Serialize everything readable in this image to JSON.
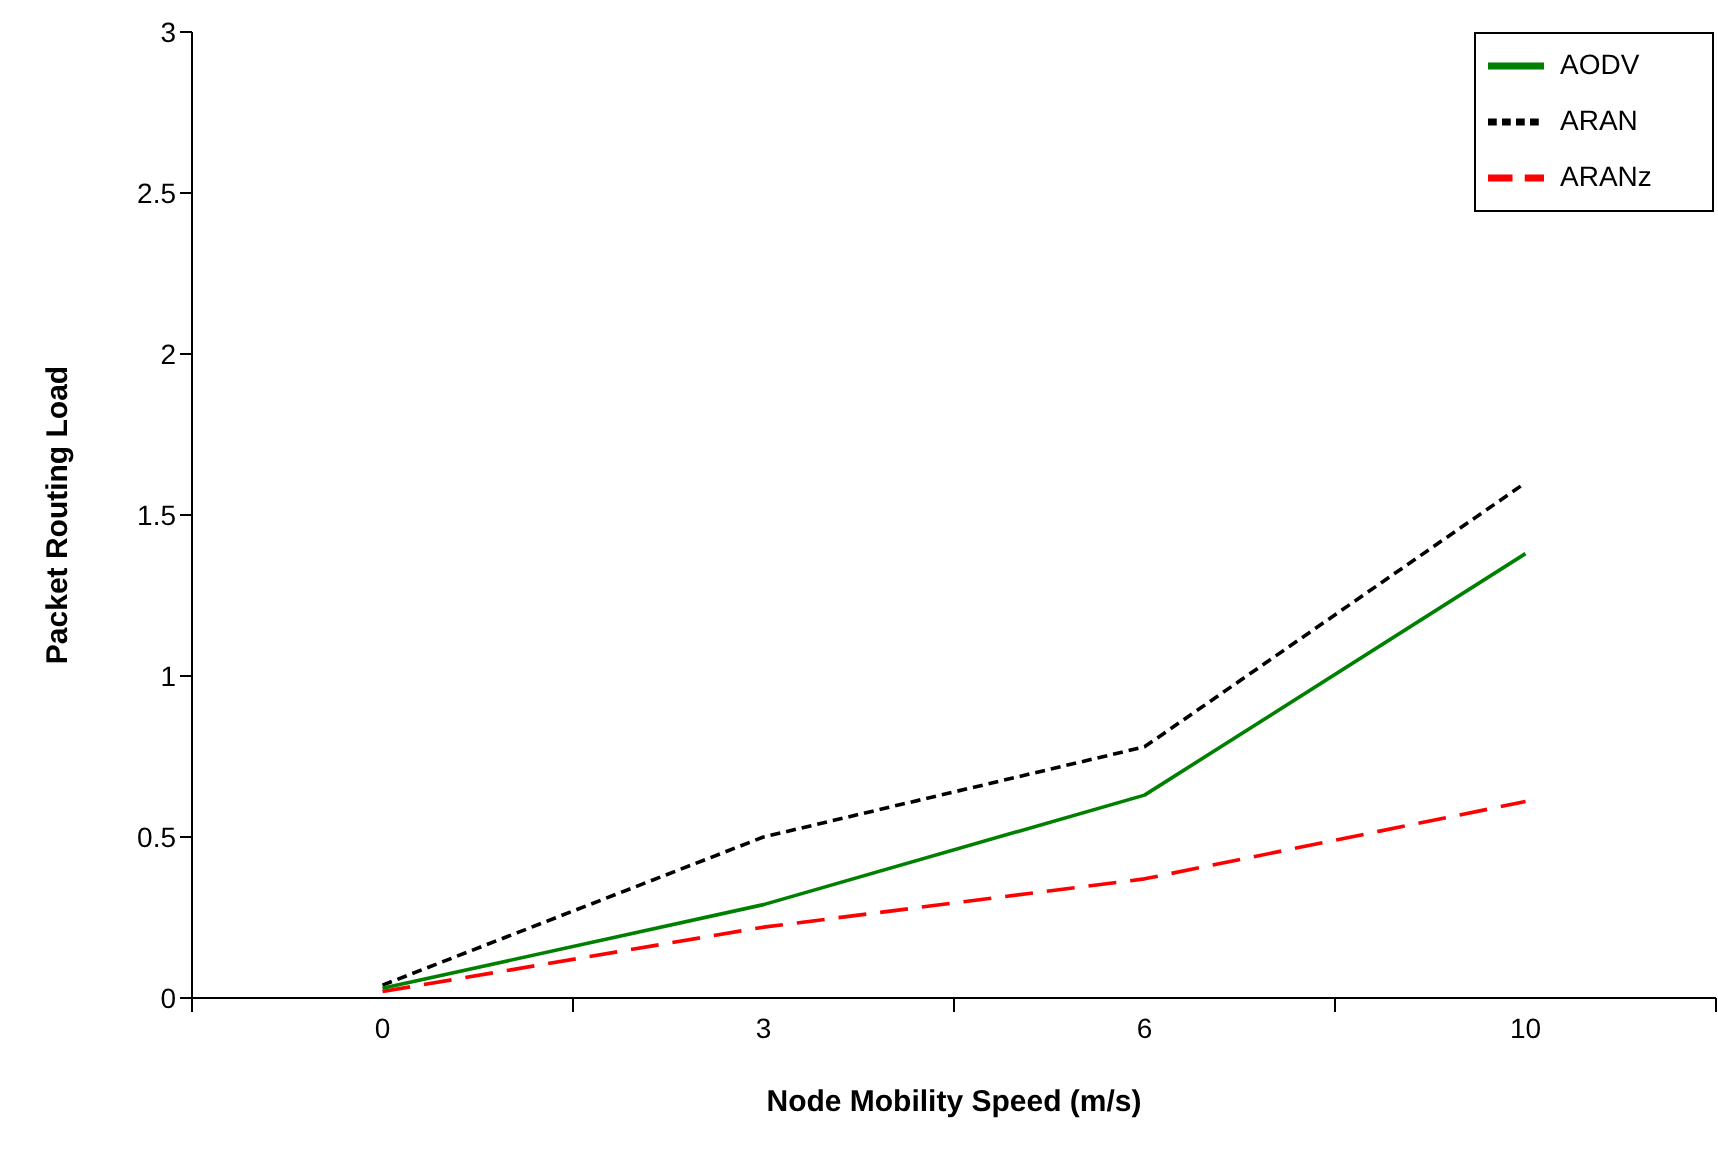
{
  "chart_data": {
    "type": "line",
    "xlabel": "Node Mobility Speed (m/s)",
    "ylabel": "Packet Routing Load",
    "categories": [
      "0",
      "3",
      "6",
      "10"
    ],
    "ylim": [
      0,
      3
    ],
    "yticks": [
      0,
      0.5,
      1,
      1.5,
      2,
      2.5,
      3
    ],
    "grid": false,
    "legend": "top right",
    "marker": "none",
    "series": [
      {
        "name": "ARANz",
        "color": "#ff0000",
        "line_style": "dashed",
        "values": [
          0.02,
          0.22,
          0.37,
          0.61
        ]
      },
      {
        "name": "ARAN",
        "color": "#000000",
        "line_style": "dotted",
        "values": [
          0.04,
          0.5,
          0.78,
          1.6
        ]
      },
      {
        "name": "AODV",
        "color": "#008000",
        "line_style": "solid",
        "values": [
          0.03,
          0.29,
          0.63,
          1.38
        ]
      }
    ]
  }
}
